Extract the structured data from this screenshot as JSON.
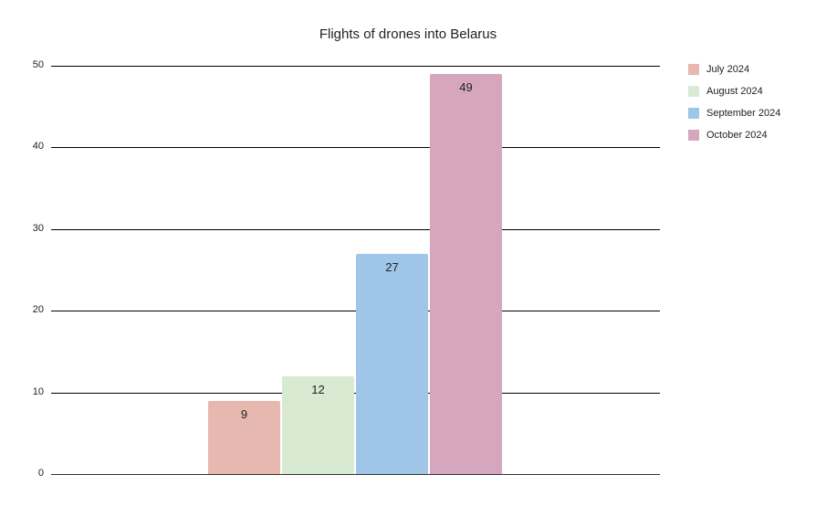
{
  "chart_data": {
    "type": "bar",
    "title": "Flights of drones into Belarus",
    "xlabel": "",
    "ylabel": "",
    "categories": [
      "July 2024",
      "August 2024",
      "September 2024",
      "October 2024"
    ],
    "values": [
      9,
      12,
      27,
      49
    ],
    "colors": [
      "#e6b8af",
      "#d9ead3",
      "#9fc5e8",
      "#d5a6bd"
    ],
    "ylim": [
      0,
      50
    ],
    "yticks": [
      0,
      10,
      20,
      30,
      40,
      50
    ],
    "data_labels": [
      "9",
      "12",
      "27",
      "49"
    ],
    "grid": true,
    "legend_position": "right"
  }
}
